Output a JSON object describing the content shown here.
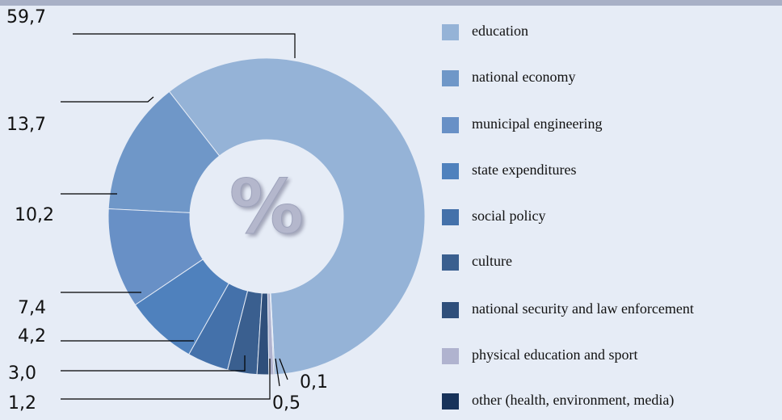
{
  "chart_data": {
    "type": "donut",
    "center_label": "%",
    "categories": [
      "education",
      "national economy",
      "municipal engineering",
      "state expenditures",
      "social policy",
      "culture",
      "national security and law enforcement",
      "physical education and sport",
      "other (health, environment, media)"
    ],
    "values": [
      59.7,
      13.7,
      10.2,
      7.4,
      4.2,
      3.0,
      1.2,
      0.5,
      0.1
    ],
    "value_labels": [
      "59,7",
      "13,7",
      "10,2",
      "7,4",
      "4,2",
      "3,0",
      "1,2",
      "0,5",
      "0,1"
    ],
    "colors": [
      "#95b3d7",
      "#6f97c8",
      "#6890c6",
      "#4f81bd",
      "#4471aa",
      "#3a5f8f",
      "#2f4f7b",
      "#b0b3cf",
      "#17325a"
    ]
  }
}
